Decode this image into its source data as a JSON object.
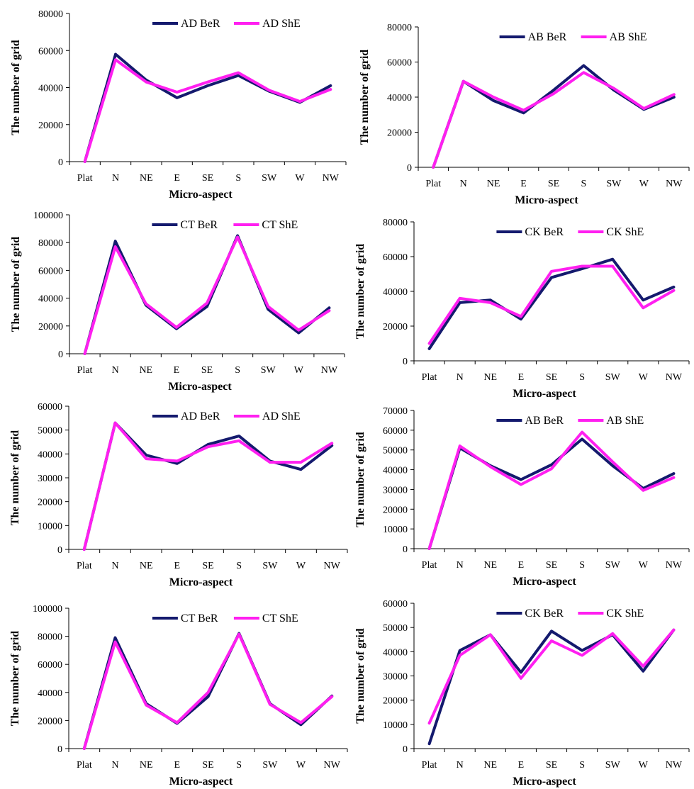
{
  "figure": {
    "colors": {
      "BeR": "#141a6e",
      "ShE": "#ff1ff0"
    },
    "x_label": "Micro-aspect",
    "y_label": "The number of grid",
    "categories": [
      "Plat",
      "N",
      "NE",
      "E",
      "SE",
      "S",
      "SW",
      "W",
      "NW"
    ]
  },
  "chart_data": [
    {
      "type": "line",
      "title": "",
      "xlabel": "Micro-aspect",
      "ylabel": "The number of grid",
      "categories": [
        "Plat",
        "N",
        "NE",
        "E",
        "SE",
        "S",
        "SW",
        "W",
        "NW"
      ],
      "ylim": [
        0,
        80000
      ],
      "yticks": [
        "0",
        "20000",
        "40000",
        "60000",
        "80000"
      ],
      "legend_position": "top",
      "series": [
        {
          "name": "AD BeR",
          "values": [
            0,
            58000,
            44000,
            34500,
            41000,
            46500,
            38000,
            32000,
            41000
          ]
        },
        {
          "name": "AD ShE",
          "values": [
            0,
            55000,
            43000,
            37500,
            43000,
            48000,
            38500,
            32500,
            39000
          ]
        }
      ]
    },
    {
      "type": "line",
      "title": "",
      "xlabel": "Micro-aspect",
      "ylabel": "The number of grid",
      "categories": [
        "Plat",
        "N",
        "NE",
        "E",
        "SE",
        "S",
        "SW",
        "W",
        "NW"
      ],
      "ylim": [
        0,
        80000
      ],
      "yticks": [
        "0",
        "20000",
        "40000",
        "60000",
        "80000"
      ],
      "legend_position": "top",
      "series": [
        {
          "name": "AB BeR",
          "values": [
            0,
            49000,
            38000,
            31000,
            44000,
            58000,
            44000,
            33000,
            40000
          ]
        },
        {
          "name": "AB ShE",
          "values": [
            0,
            49000,
            40000,
            32500,
            42000,
            54000,
            45000,
            33500,
            41500
          ]
        }
      ]
    },
    {
      "type": "line",
      "title": "",
      "xlabel": "Micro-aspect",
      "ylabel": "The number of grid",
      "categories": [
        "Plat",
        "N",
        "NE",
        "E",
        "SE",
        "S",
        "SW",
        "W",
        "NW"
      ],
      "ylim": [
        0,
        100000
      ],
      "yticks": [
        "0",
        "20000",
        "40000",
        "60000",
        "80000",
        "100000"
      ],
      "legend_position": "top",
      "series": [
        {
          "name": "CT BeR",
          "values": [
            0,
            81000,
            35000,
            18000,
            34000,
            85000,
            32000,
            15000,
            33000
          ]
        },
        {
          "name": "CT ShE",
          "values": [
            0,
            77000,
            36000,
            19000,
            36500,
            84000,
            34000,
            17000,
            31000
          ]
        }
      ]
    },
    {
      "type": "line",
      "title": "",
      "xlabel": "Micro-aspect",
      "ylabel": "The number of grid",
      "categories": [
        "Plat",
        "N",
        "NE",
        "E",
        "SE",
        "S",
        "SW",
        "W",
        "NW"
      ],
      "ylim": [
        0,
        80000
      ],
      "yticks": [
        "0",
        "20000",
        "40000",
        "60000",
        "80000"
      ],
      "legend_position": "top",
      "series": [
        {
          "name": "CK BeR",
          "values": [
            7000,
            33500,
            35000,
            24000,
            48000,
            53000,
            58500,
            35000,
            42500
          ]
        },
        {
          "name": "CK ShE",
          "values": [
            10000,
            36000,
            33500,
            25500,
            51500,
            54500,
            54500,
            30500,
            40500
          ]
        }
      ]
    },
    {
      "type": "line",
      "title": "",
      "xlabel": "Micro-aspect",
      "ylabel": "The number of grid",
      "categories": [
        "Plat",
        "N",
        "NE",
        "E",
        "SE",
        "S",
        "SW",
        "W",
        "NW"
      ],
      "ylim": [
        0,
        60000
      ],
      "yticks": [
        "0",
        "10000",
        "20000",
        "30000",
        "40000",
        "50000",
        "60000"
      ],
      "legend_position": "top",
      "series": [
        {
          "name": "AD BeR",
          "values": [
            0,
            53000,
            39500,
            36000,
            44000,
            47500,
            37000,
            33500,
            43500
          ]
        },
        {
          "name": "AD ShE",
          "values": [
            0,
            53000,
            38000,
            37000,
            43000,
            45500,
            36500,
            36500,
            44500
          ]
        }
      ]
    },
    {
      "type": "line",
      "title": "",
      "xlabel": "Micro-aspect",
      "ylabel": "The number of grid",
      "categories": [
        "Plat",
        "N",
        "NE",
        "E",
        "SE",
        "S",
        "SW",
        "W",
        "NW"
      ],
      "ylim": [
        0,
        70000
      ],
      "yticks": [
        "0",
        "10000",
        "20000",
        "30000",
        "40000",
        "50000",
        "60000",
        "70000"
      ],
      "legend_position": "top",
      "series": [
        {
          "name": "AB BeR",
          "values": [
            0,
            51000,
            42000,
            35000,
            42500,
            55500,
            42000,
            30500,
            38000
          ]
        },
        {
          "name": "AB ShE",
          "values": [
            0,
            52000,
            41500,
            32500,
            40500,
            59000,
            44000,
            29500,
            36000
          ]
        }
      ]
    },
    {
      "type": "line",
      "title": "",
      "xlabel": "Micro-aspect",
      "ylabel": "The number of grid",
      "categories": [
        "Plat",
        "N",
        "NE",
        "E",
        "SE",
        "S",
        "SW",
        "W",
        "NW"
      ],
      "ylim": [
        0,
        100000
      ],
      "yticks": [
        "0",
        "20000",
        "40000",
        "60000",
        "80000",
        "100000"
      ],
      "legend_position": "top",
      "series": [
        {
          "name": "CT BeR",
          "values": [
            0,
            79000,
            32000,
            18000,
            37000,
            82000,
            32000,
            17000,
            37500
          ]
        },
        {
          "name": "CT ShE",
          "values": [
            0,
            76000,
            31000,
            18500,
            40000,
            81500,
            31500,
            18500,
            37000
          ]
        }
      ]
    },
    {
      "type": "line",
      "title": "",
      "xlabel": "Micro-aspect",
      "ylabel": "The number of grid",
      "categories": [
        "Plat",
        "N",
        "NE",
        "E",
        "SE",
        "S",
        "SW",
        "W",
        "NW"
      ],
      "ylim": [
        0,
        60000
      ],
      "yticks": [
        "0",
        "10000",
        "20000",
        "30000",
        "40000",
        "50000",
        "60000"
      ],
      "legend_position": "top",
      "series": [
        {
          "name": "CK BeR",
          "values": [
            2000,
            40500,
            47000,
            31500,
            48500,
            40500,
            47000,
            32000,
            49000
          ]
        },
        {
          "name": "CK ShE",
          "values": [
            10500,
            38500,
            47000,
            29000,
            44500,
            38500,
            47500,
            34000,
            49000
          ]
        }
      ]
    }
  ]
}
